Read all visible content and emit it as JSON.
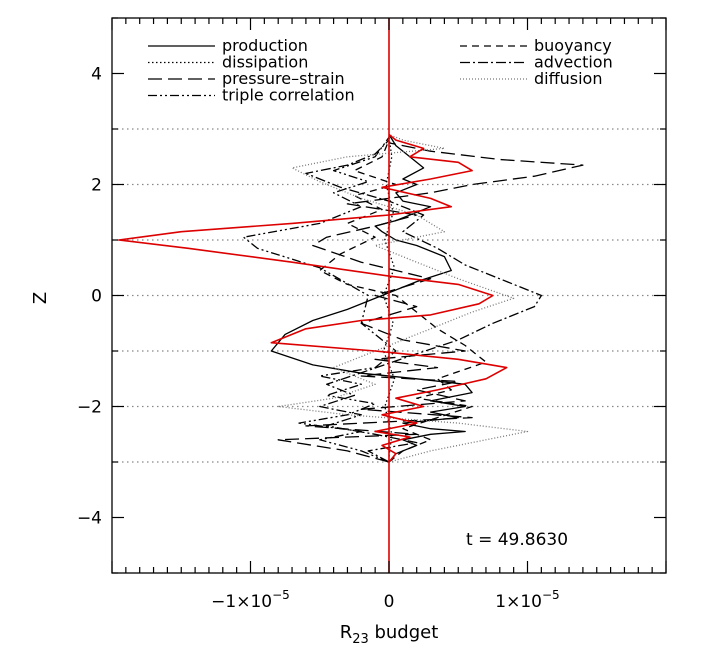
{
  "chart_data": {
    "type": "line",
    "title": "",
    "xlabel_base": "R",
    "xlabel_sub": "23",
    "xlabel_rest": " budget",
    "ylabel": "Z",
    "xlim": [
      -2e-05,
      2e-05
    ],
    "ylim": [
      -5,
      5
    ],
    "x_ticks": [
      {
        "value": -1e-05,
        "mant": "−1×10",
        "exp": "−5"
      },
      {
        "value": 0,
        "mant": "0",
        "exp": ""
      },
      {
        "value": 1e-05,
        "mant": "1×10",
        "exp": "−5"
      }
    ],
    "y_ticks": [
      {
        "value": -4,
        "label": "−4"
      },
      {
        "value": -2,
        "label": "−2"
      },
      {
        "value": 0,
        "label": "0"
      },
      {
        "value": 2,
        "label": "2"
      },
      {
        "value": 4,
        "label": "4"
      }
    ],
    "reference_lines_y": [
      -3,
      -2,
      -1,
      0,
      1,
      2,
      3
    ],
    "annotation": "t  =  49.8630",
    "legend_left": [
      {
        "name": "production",
        "style": "solid"
      },
      {
        "name": "dissipation",
        "style": "dotted"
      },
      {
        "name": "pressure–strain",
        "style": "longdash"
      },
      {
        "name": "triple correlation",
        "style": "dashdotdot"
      }
    ],
    "legend_right": [
      {
        "name": "buoyancy",
        "style": "dashed"
      },
      {
        "name": "advection",
        "style": "dashdot"
      },
      {
        "name": "diffusion",
        "style": "finedot"
      }
    ],
    "series": [
      {
        "id": "production",
        "style": "solid",
        "color": "#000000",
        "points": [
          [
            0,
            -3.0
          ],
          [
            5e-07,
            -2.85
          ],
          [
            2e-06,
            -2.7
          ],
          [
            1e-06,
            -2.6
          ],
          [
            3e-06,
            -2.5
          ],
          [
            5.5e-06,
            -2.45
          ],
          [
            3e-06,
            -2.4
          ],
          [
            1e-06,
            -2.3
          ],
          [
            5e-06,
            -2.2
          ],
          [
            3e-06,
            -2.1
          ],
          [
            5.5e-06,
            -2.0
          ],
          [
            3e-06,
            -1.9
          ],
          [
            6e-06,
            -1.75
          ],
          [
            5.5e-06,
            -1.6
          ],
          [
            2e-06,
            -1.5
          ],
          [
            -2e-06,
            -1.4
          ],
          [
            -5.5e-06,
            -1.25
          ],
          [
            -8.5e-06,
            -1.0
          ],
          [
            -7.5e-06,
            -0.7
          ],
          [
            -5.5e-06,
            -0.45
          ],
          [
            -3e-06,
            -0.25
          ],
          [
            -5e-07,
            0.0
          ],
          [
            2e-06,
            0.25
          ],
          [
            4.5e-06,
            0.45
          ],
          [
            4e-06,
            0.7
          ],
          [
            2e-06,
            0.9
          ],
          [
            5e-07,
            1.0
          ],
          [
            -5e-07,
            1.15
          ],
          [
            -1e-06,
            1.25
          ],
          [
            5e-07,
            1.35
          ],
          [
            2e-06,
            1.5
          ],
          [
            3e-06,
            1.6
          ],
          [
            1e-06,
            1.7
          ],
          [
            5e-07,
            1.85
          ],
          [
            2e-06,
            2.0
          ],
          [
            1e-06,
            2.1
          ],
          [
            2.5e-06,
            2.3
          ],
          [
            1.5e-06,
            2.5
          ],
          [
            5e-07,
            2.7
          ],
          [
            0,
            2.9
          ]
        ]
      },
      {
        "id": "dissipation",
        "style": "dotted",
        "color": "#000000",
        "points": [
          [
            0,
            -2.9
          ],
          [
            2e-07,
            -2.5
          ],
          [
            -3e-07,
            -2.0
          ],
          [
            4e-07,
            -1.5
          ],
          [
            -4e-07,
            -1.0
          ],
          [
            3e-07,
            -0.5
          ],
          [
            -4e-07,
            0.0
          ],
          [
            4e-07,
            0.5
          ],
          [
            -3e-07,
            1.0
          ],
          [
            3e-07,
            1.5
          ],
          [
            -2e-07,
            2.0
          ],
          [
            2e-07,
            2.5
          ],
          [
            0,
            2.85
          ]
        ]
      },
      {
        "id": "pressure-strain",
        "style": "longdash",
        "color": "#000000",
        "points": [
          [
            0,
            -3.0
          ],
          [
            -3e-06,
            -2.8
          ],
          [
            -8e-06,
            -2.6
          ],
          [
            2e-06,
            -2.5
          ],
          [
            -6e-06,
            -2.35
          ],
          [
            6e-06,
            -2.2
          ],
          [
            -2e-06,
            -2.05
          ],
          [
            5.5e-06,
            -1.9
          ],
          [
            2e-06,
            -1.7
          ],
          [
            5e-06,
            -1.55
          ],
          [
            -2e-06,
            -1.45
          ],
          [
            3.5e-06,
            -1.3
          ],
          [
            -1e-06,
            -1.15
          ],
          [
            5.5e-06,
            -1.0
          ],
          [
            1e-06,
            -0.8
          ],
          [
            -2e-06,
            -0.5
          ],
          [
            2e-06,
            -0.2
          ],
          [
            -1e-06,
            0.0
          ],
          [
            3e-06,
            0.3
          ],
          [
            -2e-06,
            0.6
          ],
          [
            -5.5e-06,
            0.9
          ],
          [
            -4.5e-06,
            1.05
          ],
          [
            -1e-06,
            1.25
          ],
          [
            2e-06,
            1.45
          ],
          [
            -3e-06,
            1.65
          ],
          [
            3e-06,
            1.85
          ],
          [
            6e-06,
            2.0
          ],
          [
            1.05e-05,
            2.15
          ],
          [
            1.4e-05,
            2.35
          ],
          [
            8e-06,
            2.45
          ],
          [
            3e-06,
            2.6
          ],
          [
            0,
            2.75
          ]
        ]
      },
      {
        "id": "triple-correlation",
        "style": "dashdotdot",
        "color": "#000000",
        "points": [
          [
            0,
            -3.0
          ],
          [
            -2e-06,
            -2.8
          ],
          [
            -5e-06,
            -2.6
          ],
          [
            -2e-06,
            -2.45
          ],
          [
            -6.5e-06,
            -2.3
          ],
          [
            -3e-06,
            -2.15
          ],
          [
            -1e-06,
            -1.95
          ],
          [
            -4.5e-06,
            -1.8
          ],
          [
            -2e-06,
            -1.6
          ],
          [
            -5e-06,
            -1.45
          ],
          [
            -1e-06,
            -1.3
          ],
          [
            5e-07,
            -1.0
          ],
          [
            -2e-06,
            -0.5
          ],
          [
            -1.5e-06,
            0.0
          ],
          [
            -5e-06,
            0.5
          ],
          [
            -9.5e-06,
            0.85
          ],
          [
            -1.05e-05,
            1.05
          ],
          [
            -5e-06,
            1.3
          ],
          [
            -2e-06,
            1.6
          ],
          [
            -4e-06,
            1.85
          ],
          [
            -1.5e-06,
            2.05
          ],
          [
            -4e-06,
            2.25
          ],
          [
            -1e-06,
            2.5
          ],
          [
            0,
            2.85
          ]
        ]
      },
      {
        "id": "buoyancy",
        "style": "dashed",
        "color": "#000000",
        "points": [
          [
            0,
            -3.0
          ],
          [
            1e-06,
            -2.8
          ],
          [
            3e-06,
            -2.6
          ],
          [
            1e-06,
            -2.4
          ],
          [
            3.5e-06,
            -2.2
          ],
          [
            6e-06,
            -2.0
          ],
          [
            2e-06,
            -1.85
          ],
          [
            4.5e-06,
            -1.7
          ],
          [
            3.5e-06,
            -1.5
          ],
          [
            7e-06,
            -1.2
          ],
          [
            5.5e-06,
            -0.9
          ],
          [
            3.5e-06,
            -0.6
          ],
          [
            2e-06,
            -0.3
          ],
          [
            5e-07,
            0.0
          ],
          [
            -3e-06,
            0.2
          ],
          [
            -5e-06,
            0.45
          ],
          [
            -3.5e-06,
            0.75
          ],
          [
            -1e-06,
            1.05
          ],
          [
            -3e-06,
            1.3
          ],
          [
            -5e-07,
            1.55
          ],
          [
            -2.5e-06,
            1.8
          ],
          [
            5e-07,
            2.0
          ],
          [
            -2.5e-06,
            2.25
          ],
          [
            -5e-07,
            2.5
          ],
          [
            0,
            2.8
          ]
        ]
      },
      {
        "id": "advection",
        "style": "dashdot",
        "color": "#000000",
        "points": [
          [
            0,
            -3.0
          ],
          [
            -1.5e-06,
            -2.8
          ],
          [
            2e-06,
            -2.65
          ],
          [
            -1e-06,
            -2.5
          ],
          [
            -4.5e-06,
            -2.35
          ],
          [
            -2e-06,
            -2.15
          ],
          [
            -5e-06,
            -2.0
          ],
          [
            -2.5e-06,
            -1.8
          ],
          [
            -4.5e-06,
            -1.6
          ],
          [
            -1.5e-06,
            -1.35
          ],
          [
            2e-06,
            -1.05
          ],
          [
            5e-06,
            -0.8
          ],
          [
            7.5e-06,
            -0.5
          ],
          [
            1.05e-05,
            -0.2
          ],
          [
            1.1e-05,
            0.0
          ],
          [
            8e-06,
            0.3
          ],
          [
            5.5e-06,
            0.55
          ],
          [
            3.5e-06,
            0.85
          ],
          [
            1e-06,
            1.15
          ],
          [
            2.5e-06,
            1.45
          ],
          [
            0,
            1.7
          ],
          [
            -3.5e-06,
            1.95
          ],
          [
            -6e-06,
            2.2
          ],
          [
            -3e-06,
            2.35
          ],
          [
            -1e-06,
            2.55
          ],
          [
            0,
            2.8
          ]
        ]
      },
      {
        "id": "diffusion",
        "style": "finedot",
        "color": "#000000",
        "points": [
          [
            0,
            -3.0
          ],
          [
            3e-06,
            -2.8
          ],
          [
            7e-06,
            -2.6
          ],
          [
            1e-05,
            -2.45
          ],
          [
            5e-06,
            -2.3
          ],
          [
            -3e-06,
            -2.15
          ],
          [
            -8e-06,
            -2.0
          ],
          [
            -4e-06,
            -1.85
          ],
          [
            -1e-06,
            -1.6
          ],
          [
            -4e-06,
            -1.3
          ],
          [
            -1e-06,
            -1.0
          ],
          [
            3e-06,
            -0.6
          ],
          [
            6e-06,
            -0.3
          ],
          [
            9e-06,
            -0.05
          ],
          [
            5e-06,
            0.3
          ],
          [
            2e-06,
            0.6
          ],
          [
            -1e-06,
            0.9
          ],
          [
            4e-06,
            1.15
          ],
          [
            2e-06,
            1.45
          ],
          [
            -2e-06,
            1.75
          ],
          [
            -5e-06,
            2.05
          ],
          [
            -7e-06,
            2.3
          ],
          [
            -3e-06,
            2.5
          ],
          [
            4e-06,
            2.65
          ],
          [
            1e-06,
            2.8
          ],
          [
            0,
            2.9
          ]
        ]
      },
      {
        "id": "total",
        "style": "solid",
        "color": "#dd0000",
        "points": [
          [
            0,
            -3.0
          ],
          [
            5e-07,
            -2.85
          ],
          [
            -5e-07,
            -2.7
          ],
          [
            1.5e-06,
            -2.55
          ],
          [
            -1e-06,
            -2.45
          ],
          [
            2e-06,
            -2.3
          ],
          [
            -5e-07,
            -2.15
          ],
          [
            2.5e-06,
            -2.0
          ],
          [
            5e-07,
            -1.85
          ],
          [
            3.5e-06,
            -1.7
          ],
          [
            7e-06,
            -1.5
          ],
          [
            8.5e-06,
            -1.3
          ],
          [
            5e-06,
            -1.15
          ],
          [
            -1e-06,
            -1.0
          ],
          [
            -8.5e-06,
            -0.85
          ],
          [
            -6e-06,
            -0.6
          ],
          [
            -2e-06,
            -0.45
          ],
          [
            3e-06,
            -0.35
          ],
          [
            6.5e-06,
            -0.15
          ],
          [
            7.5e-06,
            0.0
          ],
          [
            5e-06,
            0.2
          ],
          [
            0,
            0.35
          ],
          [
            -7e-06,
            0.6
          ],
          [
            -1.45e-05,
            0.85
          ],
          [
            -1.95e-05,
            1.0
          ],
          [
            -1.5e-05,
            1.15
          ],
          [
            -7e-06,
            1.3
          ],
          [
            0,
            1.45
          ],
          [
            4.5e-06,
            1.6
          ],
          [
            3e-06,
            1.75
          ],
          [
            -5e-07,
            1.95
          ],
          [
            3e-06,
            2.1
          ],
          [
            6e-06,
            2.25
          ],
          [
            5e-06,
            2.4
          ],
          [
            1.5e-06,
            2.5
          ],
          [
            2.5e-06,
            2.65
          ],
          [
            5e-07,
            2.8
          ],
          [
            0,
            2.9
          ]
        ]
      },
      {
        "id": "zero-line",
        "style": "solid",
        "color": "#dd0000",
        "points": [
          [
            0,
            -5
          ],
          [
            0,
            5
          ]
        ]
      }
    ]
  }
}
